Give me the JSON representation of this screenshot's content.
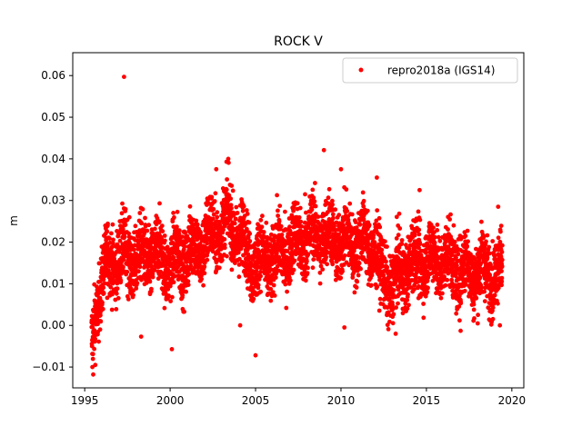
{
  "chart_data": {
    "type": "scatter",
    "title": "ROCK V",
    "xlabel": "",
    "ylabel": "m",
    "xlim": [
      1994.3,
      2020.7
    ],
    "ylim": [
      -0.015,
      0.0655
    ],
    "xticks": [
      1995,
      2000,
      2005,
      2010,
      2015,
      2020
    ],
    "xtick_labels": [
      "1995",
      "2000",
      "2005",
      "2010",
      "2015",
      "2020"
    ],
    "yticks": [
      -0.01,
      0.0,
      0.01,
      0.02,
      0.03,
      0.04,
      0.05,
      0.06
    ],
    "ytick_labels": [
      "−0.01",
      "0.00",
      "0.01",
      "0.02",
      "0.03",
      "0.04",
      "0.05",
      "0.06"
    ],
    "grid": false,
    "legend_position": "top-right",
    "series": [
      {
        "name": "repro2018a (IGS14)",
        "color": "#ff0000",
        "marker": "circle",
        "x_start": 1995.4,
        "x_end": 2019.45,
        "trend": [
          [
            1995.4,
            -0.006
          ],
          [
            1995.6,
            0.002
          ],
          [
            1995.9,
            0.01
          ],
          [
            1996.3,
            0.014
          ],
          [
            1997.0,
            0.017
          ],
          [
            1998.0,
            0.016
          ],
          [
            1999.0,
            0.017
          ],
          [
            2000.0,
            0.015
          ],
          [
            2001.0,
            0.017
          ],
          [
            2002.0,
            0.02
          ],
          [
            2003.0,
            0.024
          ],
          [
            2003.6,
            0.025
          ],
          [
            2004.3,
            0.019
          ],
          [
            2005.0,
            0.015
          ],
          [
            2006.0,
            0.016
          ],
          [
            2007.0,
            0.019
          ],
          [
            2008.0,
            0.021
          ],
          [
            2009.0,
            0.022
          ],
          [
            2010.0,
            0.02
          ],
          [
            2011.0,
            0.02
          ],
          [
            2012.0,
            0.019
          ],
          [
            2012.3,
            0.012
          ],
          [
            2013.0,
            0.01
          ],
          [
            2014.0,
            0.015
          ],
          [
            2015.0,
            0.016
          ],
          [
            2016.0,
            0.016
          ],
          [
            2016.8,
            0.014
          ],
          [
            2017.5,
            0.013
          ],
          [
            2018.5,
            0.013
          ],
          [
            2019.45,
            0.013
          ]
        ],
        "outliers": [
          [
            1997.3,
            0.0597
          ],
          [
            2009.0,
            0.0421
          ],
          [
            2010.0,
            0.0375
          ],
          [
            2003.4,
            0.04
          ],
          [
            2003.3,
            0.0393
          ],
          [
            2000.1,
            -0.0057
          ],
          [
            2005.0,
            -0.0072
          ],
          [
            2010.2,
            -0.0005
          ],
          [
            2004.1,
            0.0
          ],
          [
            1998.3,
            -0.0027
          ],
          [
            2017.0,
            -0.0013
          ],
          [
            1995.5,
            -0.0118
          ],
          [
            1995.45,
            -0.01
          ],
          [
            2012.1,
            0.0355
          ],
          [
            2002.7,
            0.0375
          ],
          [
            2007.9,
            0.0315
          ],
          [
            2014.6,
            0.0325
          ],
          [
            2019.2,
            0.0285
          ],
          [
            2013.2,
            -0.002
          ],
          [
            2019.3,
            0.0
          ]
        ]
      }
    ]
  }
}
